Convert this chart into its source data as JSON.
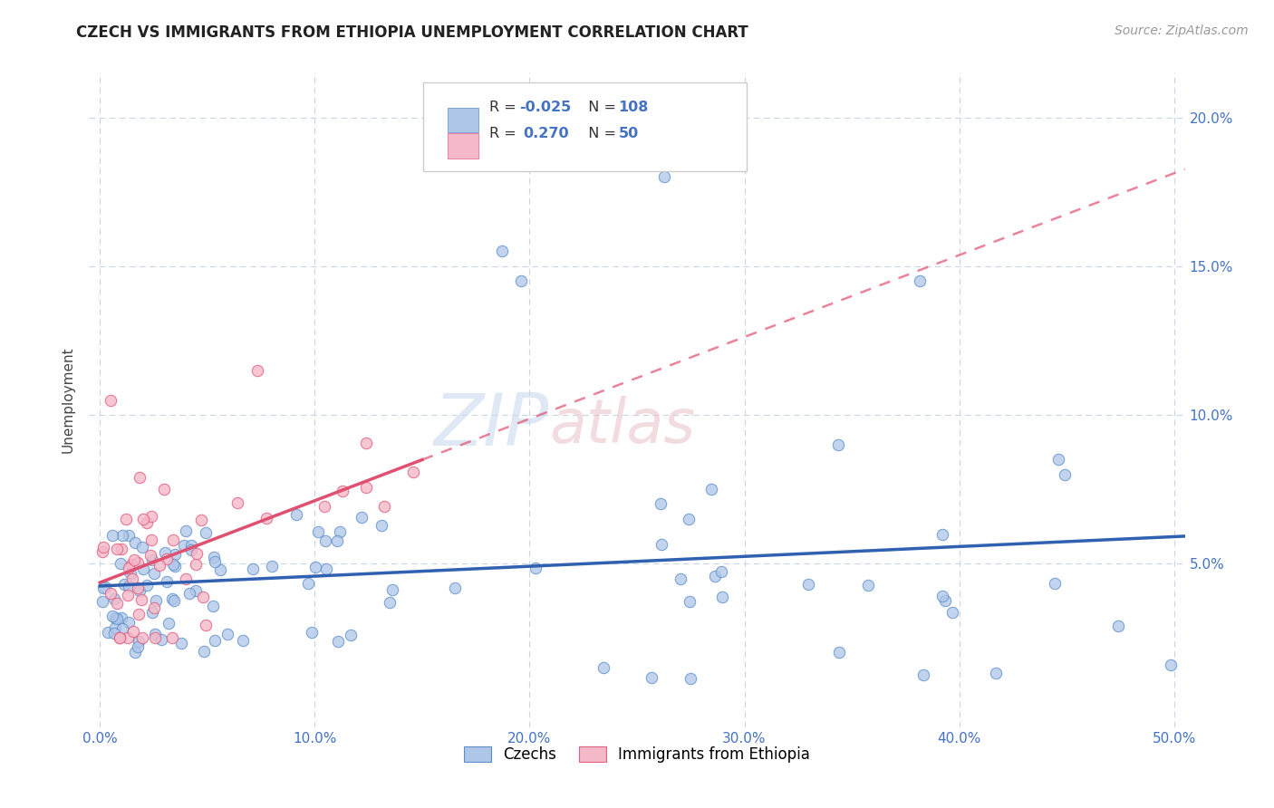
{
  "title": "CZECH VS IMMIGRANTS FROM ETHIOPIA UNEMPLOYMENT CORRELATION CHART",
  "source_text": "Source: ZipAtlas.com",
  "ylabel": "Unemployment",
  "xlim": [
    -0.005,
    0.505
  ],
  "ylim": [
    -0.005,
    0.215
  ],
  "xtick_labels": [
    "0.0%",
    "10.0%",
    "20.0%",
    "30.0%",
    "40.0%",
    "50.0%"
  ],
  "xtick_vals": [
    0.0,
    0.1,
    0.2,
    0.3,
    0.4,
    0.5
  ],
  "ytick_labels": [
    "5.0%",
    "10.0%",
    "15.0%",
    "20.0%"
  ],
  "ytick_vals": [
    0.05,
    0.1,
    0.15,
    0.2
  ],
  "czech_color": "#aec6e8",
  "czech_edge_color": "#5b8ec9",
  "ethiopia_color": "#f5b8c8",
  "ethiopia_edge_color": "#e06080",
  "czech_R": -0.025,
  "czech_N": 108,
  "ethiopia_R": 0.27,
  "ethiopia_N": 50,
  "trend_czech_color": "#3060b0",
  "trend_ethiopia_color": "#e05070",
  "watermark_zip": "ZIP",
  "watermark_atlas": "atlas",
  "legend_label_czech": "Czechs",
  "legend_label_ethiopia": "Immigrants from Ethiopia",
  "background_color": "#ffffff",
  "grid_color": "#c8d4e8",
  "title_color": "#222222",
  "axis_label_color": "#444444",
  "tick_color": "#4472c4",
  "title_fontsize": 12,
  "source_fontsize": 10,
  "tick_fontsize": 11,
  "ylabel_fontsize": 11
}
